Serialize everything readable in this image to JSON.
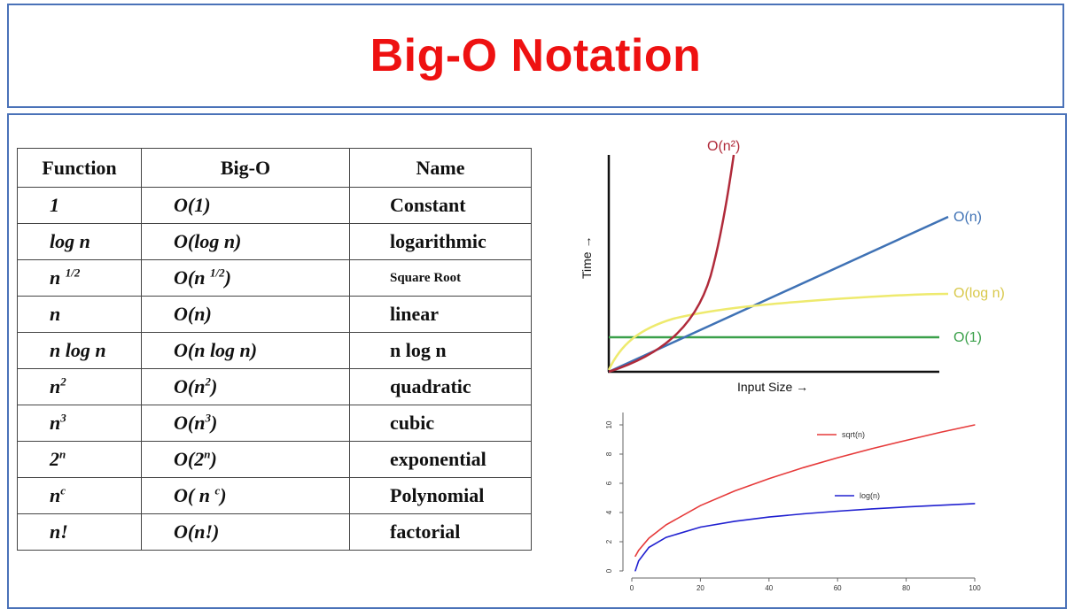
{
  "title": "Big-O Notation",
  "table": {
    "headers": [
      "Function",
      "Big-O",
      "Name"
    ],
    "rows": [
      {
        "fn": "1",
        "fn_sup": "",
        "bigo": "O(1)",
        "bigo_sup": "",
        "bigo_tail": "",
        "name": "Constant"
      },
      {
        "fn": "log n",
        "fn_sup": "",
        "bigo": "O(log n)",
        "bigo_sup": "",
        "bigo_tail": "",
        "name": "logarithmic"
      },
      {
        "fn": "n ",
        "fn_sup": "1/2",
        "bigo": "O(n ",
        "bigo_sup": "1/2",
        "bigo_tail": ")",
        "name": "Square Root"
      },
      {
        "fn": "n",
        "fn_sup": "",
        "bigo": "O(n)",
        "bigo_sup": "",
        "bigo_tail": "",
        "name": "linear"
      },
      {
        "fn": "n log n",
        "fn_sup": "",
        "bigo": "O(n log n)",
        "bigo_sup": "",
        "bigo_tail": "",
        "name": "n log n"
      },
      {
        "fn": "n",
        "fn_sup": "2",
        "bigo": "O(n",
        "bigo_sup": "2",
        "bigo_tail": ")",
        "name": "quadratic"
      },
      {
        "fn": "n",
        "fn_sup": "3",
        "bigo": "O(n",
        "bigo_sup": "3",
        "bigo_tail": ")",
        "name": "cubic"
      },
      {
        "fn": "2",
        "fn_sup": "n",
        "bigo": "O(2",
        "bigo_sup": "n",
        "bigo_tail": ")",
        "name": "exponential"
      },
      {
        "fn": "n",
        "fn_sup": "c",
        "bigo": "O( n ",
        "bigo_sup": "c",
        "bigo_tail": ")",
        "name": "Polynomial"
      },
      {
        "fn": "n!",
        "fn_sup": "",
        "bigo": "O(n!)",
        "bigo_sup": "",
        "bigo_tail": "",
        "name": "factorial"
      }
    ]
  },
  "growth_chart": {
    "xlabel": "Input Size →",
    "ylabel": "Time →",
    "labels": {
      "quadratic": "O(n²)",
      "linear": "O(n)",
      "log": "O(log n)",
      "constant": "O(1)"
    },
    "colors": {
      "quadratic": "#b02a3a",
      "linear": "#3f72b5",
      "log": "#eeea6e",
      "constant": "#3aa04a"
    }
  },
  "chart_data": {
    "type": "line",
    "xlim": [
      0,
      100
    ],
    "ylim": [
      0,
      10
    ],
    "x_ticks": [
      "0",
      "20",
      "40",
      "60",
      "80",
      "100"
    ],
    "y_ticks": [
      "0",
      "2",
      "4",
      "6",
      "8",
      "10"
    ],
    "legend": [
      {
        "label": "sqrt(n)",
        "color": "#e63a3a"
      },
      {
        "label": "log(n)",
        "color": "#2020d0"
      }
    ],
    "series": [
      {
        "name": "sqrt(n)",
        "color": "#e63a3a",
        "x": [
          1,
          2,
          5,
          10,
          20,
          30,
          40,
          50,
          60,
          70,
          80,
          90,
          100
        ],
        "y": [
          1,
          1.41,
          2.24,
          3.16,
          4.47,
          5.48,
          6.32,
          7.07,
          7.75,
          8.37,
          8.94,
          9.49,
          10
        ]
      },
      {
        "name": "log(n)",
        "color": "#2020d0",
        "x": [
          1,
          2,
          5,
          10,
          20,
          30,
          40,
          50,
          60,
          70,
          80,
          90,
          100
        ],
        "y": [
          0,
          0.69,
          1.61,
          2.3,
          3.0,
          3.4,
          3.69,
          3.91,
          4.09,
          4.25,
          4.38,
          4.5,
          4.61
        ]
      }
    ]
  }
}
